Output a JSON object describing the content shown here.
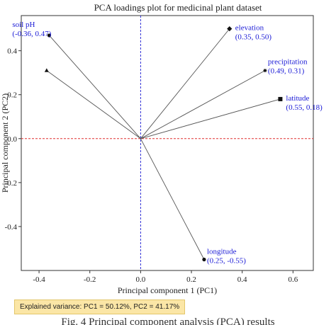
{
  "chart_data": {
    "type": "scatter",
    "title": "PCA loadings plot for medicinal plant dataset",
    "xlabel": "Principal component 1 (PC1)",
    "ylabel": "Principal component 2 (PC2)",
    "xlim": [
      -0.47,
      0.68
    ],
    "ylim": [
      -0.6,
      0.56
    ],
    "xticks": [
      -0.4,
      -0.2,
      0.0,
      0.2,
      0.4,
      0.6
    ],
    "yticks": [
      -0.4,
      -0.2,
      0.0,
      0.2,
      0.4
    ],
    "x_tick_labels": [
      "-0.4",
      "-0.2",
      "0.0",
      "0.2",
      "0.4",
      "0.6"
    ],
    "y_tick_labels": [
      "-0.4",
      "-0.2",
      "0.0",
      "0.2",
      "0.4"
    ],
    "grid": false,
    "reference_lines": {
      "horizontal_at": 0,
      "vertical_at": 0,
      "h_color": "#e03030",
      "v_color": "#2a2ad6"
    },
    "label_color": "#1a1ad6",
    "points": [
      {
        "name": "soil pH",
        "coord": "(-0.36, 0.47)",
        "x": -0.36,
        "y": 0.47,
        "marker": "circle"
      },
      {
        "name": "",
        "coord": "",
        "x": -0.37,
        "y": 0.31,
        "marker": "triangle"
      },
      {
        "name": "elevation",
        "coord": "(0.35, 0.50)",
        "x": 0.35,
        "y": 0.5,
        "marker": "diamond"
      },
      {
        "name": "precipitation",
        "coord": "(0.49, 0.31)",
        "x": 0.49,
        "y": 0.31,
        "marker": "star"
      },
      {
        "name": "latitude",
        "coord": "(0.55, 0.18)",
        "x": 0.55,
        "y": 0.18,
        "marker": "square"
      },
      {
        "name": "longitude",
        "coord": "(0.25, -0.55)",
        "x": 0.25,
        "y": -0.55,
        "marker": "circle"
      }
    ]
  },
  "explained_variance": "Explained variance: PC1 = 50.12%, PC2 = 41.17%",
  "caption": "Fig. 4 Principal component analysis (PCA) results"
}
